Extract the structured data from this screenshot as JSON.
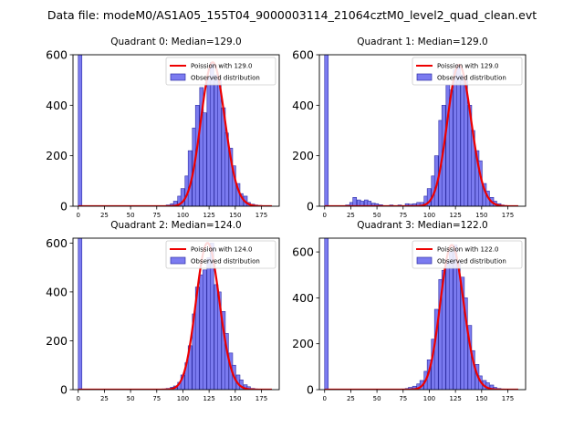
{
  "figure_title": "Data file: modeM0/AS1A05_155T04_9000003114_21064cztM0_level2_quad_clean.evt",
  "colors": {
    "bar_fill": "#7b7bf0",
    "bar_edge": "#2f2fa6",
    "poisson": "#ee0000",
    "axis": "#000000"
  },
  "chart_data": [
    {
      "type": "bar",
      "title": "Quadrant 0: Median=129.0",
      "median": 129.0,
      "legend": {
        "line": "Poission with 129.0",
        "bar": "Observed distribution",
        "placement": "top-right"
      },
      "xlim": [
        -5,
        192
      ],
      "ylim": [
        0,
        600
      ],
      "xticks": [
        0,
        25,
        50,
        75,
        100,
        125,
        150,
        175
      ],
      "yticks": [
        0,
        200,
        400,
        600
      ],
      "bin_width": 3.5,
      "bins": [
        [
          0,
          600
        ],
        [
          80,
          2
        ],
        [
          84,
          5
        ],
        [
          88,
          10
        ],
        [
          91,
          20
        ],
        [
          95,
          40
        ],
        [
          98,
          70
        ],
        [
          102,
          120
        ],
        [
          105,
          220
        ],
        [
          109,
          310
        ],
        [
          112,
          400
        ],
        [
          116,
          470
        ],
        [
          119,
          370
        ],
        [
          123,
          510
        ],
        [
          126,
          570
        ],
        [
          130,
          520
        ],
        [
          133,
          500
        ],
        [
          137,
          390
        ],
        [
          140,
          290
        ],
        [
          144,
          230
        ],
        [
          147,
          160
        ],
        [
          151,
          90
        ],
        [
          154,
          50
        ],
        [
          158,
          40
        ],
        [
          161,
          15
        ],
        [
          165,
          8
        ],
        [
          168,
          5
        ],
        [
          172,
          3
        ]
      ]
    },
    {
      "type": "bar",
      "title": "Quadrant 1: Median=129.0",
      "median": 129.0,
      "legend": {
        "line": "Poission with 129.0",
        "bar": "Observed distribution",
        "placement": "top-right"
      },
      "xlim": [
        -5,
        192
      ],
      "ylim": [
        0,
        600
      ],
      "xticks": [
        0,
        25,
        50,
        75,
        100,
        125,
        150,
        175
      ],
      "yticks": [
        0,
        200,
        400,
        600
      ],
      "bin_width": 3.5,
      "bins": [
        [
          0,
          600
        ],
        [
          20,
          5
        ],
        [
          24,
          15
        ],
        [
          27,
          35
        ],
        [
          31,
          25
        ],
        [
          34,
          20
        ],
        [
          38,
          25
        ],
        [
          41,
          20
        ],
        [
          45,
          12
        ],
        [
          48,
          10
        ],
        [
          52,
          6
        ],
        [
          62,
          5
        ],
        [
          70,
          5
        ],
        [
          77,
          10
        ],
        [
          80,
          8
        ],
        [
          84,
          10
        ],
        [
          88,
          15
        ],
        [
          91,
          15
        ],
        [
          95,
          40
        ],
        [
          98,
          70
        ],
        [
          102,
          120
        ],
        [
          105,
          200
        ],
        [
          109,
          340
        ],
        [
          112,
          400
        ],
        [
          116,
          480
        ],
        [
          119,
          460
        ],
        [
          123,
          540
        ],
        [
          126,
          560
        ],
        [
          130,
          520
        ],
        [
          133,
          500
        ],
        [
          137,
          400
        ],
        [
          140,
          300
        ],
        [
          144,
          220
        ],
        [
          147,
          180
        ],
        [
          151,
          90
        ],
        [
          154,
          60
        ],
        [
          158,
          35
        ],
        [
          161,
          20
        ],
        [
          165,
          10
        ],
        [
          168,
          5
        ]
      ]
    },
    {
      "type": "bar",
      "title": "Quadrant 2: Median=124.0",
      "median": 124.0,
      "legend": {
        "line": "Poission with 124.0",
        "bar": "Observed distribution",
        "placement": "top-right"
      },
      "xlim": [
        -5,
        192
      ],
      "ylim": [
        0,
        620
      ],
      "xticks": [
        0,
        25,
        50,
        75,
        100,
        125,
        150,
        175
      ],
      "yticks": [
        0,
        200,
        400,
        600
      ],
      "bin_width": 3.5,
      "bins": [
        [
          0,
          620
        ],
        [
          80,
          3
        ],
        [
          84,
          5
        ],
        [
          88,
          10
        ],
        [
          91,
          15
        ],
        [
          95,
          30
        ],
        [
          98,
          60
        ],
        [
          102,
          110
        ],
        [
          105,
          180
        ],
        [
          109,
          310
        ],
        [
          112,
          420
        ],
        [
          116,
          470
        ],
        [
          119,
          490
        ],
        [
          123,
          540
        ],
        [
          126,
          600
        ],
        [
          130,
          430
        ],
        [
          133,
          400
        ],
        [
          137,
          320
        ],
        [
          140,
          230
        ],
        [
          144,
          150
        ],
        [
          147,
          100
        ],
        [
          151,
          60
        ],
        [
          154,
          40
        ],
        [
          158,
          20
        ],
        [
          161,
          12
        ],
        [
          165,
          5
        ],
        [
          168,
          3
        ]
      ]
    },
    {
      "type": "bar",
      "title": "Quadrant 3: Median=122.0",
      "median": 122.0,
      "legend": {
        "line": "Poission with 122.0",
        "bar": "Observed distribution",
        "placement": "top-right"
      },
      "xlim": [
        -5,
        192
      ],
      "ylim": [
        0,
        660
      ],
      "xticks": [
        0,
        25,
        50,
        75,
        100,
        125,
        150,
        175
      ],
      "yticks": [
        0,
        200,
        400,
        600
      ],
      "bin_width": 3.5,
      "bins": [
        [
          0,
          660
        ],
        [
          73,
          3
        ],
        [
          77,
          5
        ],
        [
          80,
          10
        ],
        [
          84,
          15
        ],
        [
          88,
          25
        ],
        [
          91,
          40
        ],
        [
          95,
          80
        ],
        [
          98,
          130
        ],
        [
          102,
          220
        ],
        [
          105,
          350
        ],
        [
          109,
          480
        ],
        [
          112,
          520
        ],
        [
          116,
          560
        ],
        [
          119,
          600
        ],
        [
          123,
          630
        ],
        [
          126,
          560
        ],
        [
          130,
          490
        ],
        [
          133,
          400
        ],
        [
          137,
          280
        ],
        [
          140,
          170
        ],
        [
          144,
          110
        ],
        [
          147,
          60
        ],
        [
          151,
          40
        ],
        [
          154,
          30
        ],
        [
          158,
          20
        ],
        [
          161,
          10
        ],
        [
          165,
          5
        ],
        [
          168,
          3
        ]
      ]
    }
  ]
}
